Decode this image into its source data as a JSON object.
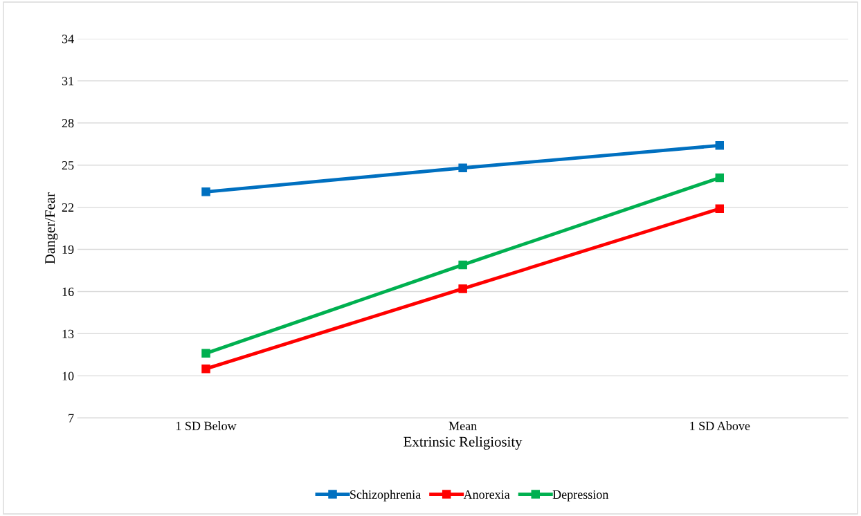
{
  "chart_data": {
    "type": "line",
    "xlabel": "Extrinsic Religiosity",
    "ylabel": "Danger/Fear",
    "categories": [
      "1 SD Below",
      "Mean",
      "1 SD Above"
    ],
    "series": [
      {
        "name": "Schizophrenia",
        "color": "#0070c0",
        "values": [
          23.1,
          24.8,
          26.4
        ]
      },
      {
        "name": "Anorexia",
        "color": "#ff0000",
        "values": [
          10.5,
          16.2,
          21.9
        ]
      },
      {
        "name": "Depression",
        "color": "#00b050",
        "values": [
          11.6,
          17.9,
          24.1
        ]
      }
    ],
    "ylim": [
      7,
      34
    ],
    "yticks": [
      7,
      10,
      13,
      16,
      19,
      22,
      25,
      28,
      31,
      34
    ],
    "grid": "y",
    "legend": "bottom",
    "marker": "square",
    "line_style": "solid"
  }
}
